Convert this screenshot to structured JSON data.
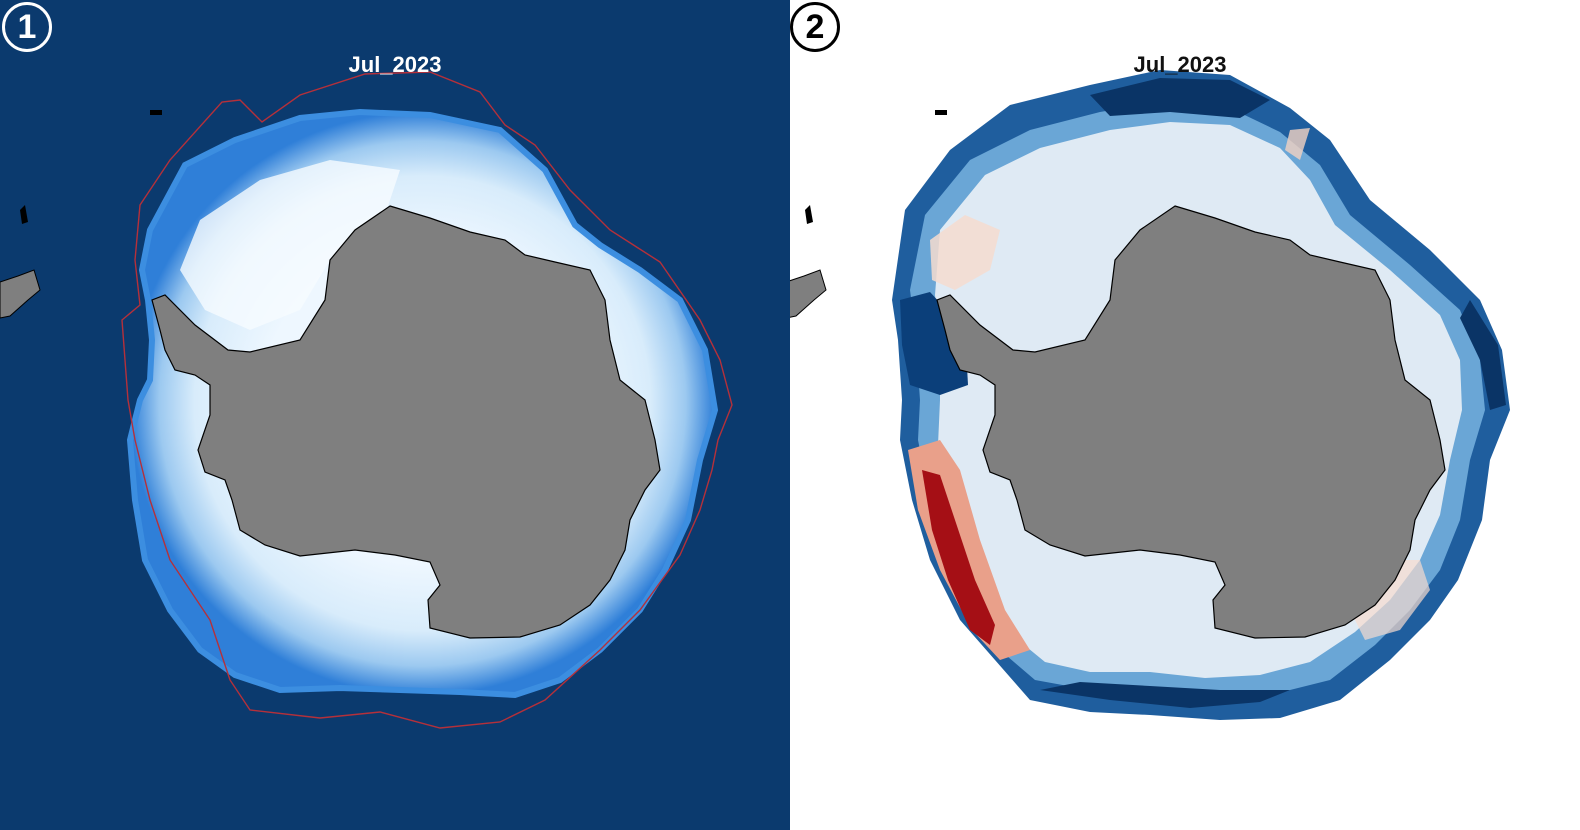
{
  "panels": [
    {
      "number": "1",
      "title": "Jul_2023",
      "colors": {
        "ocean": "#0b3a6e",
        "ice_outer": "#2f7fd8",
        "ice_mid": "#a9d3f5",
        "ice_inner": "#eef7ff",
        "land": "#7f7f7f",
        "climatology_contour": "#b5303a"
      }
    },
    {
      "number": "2",
      "title": "Jul_2023",
      "colors": {
        "background": "#ffffff",
        "anomaly_negative_strong": "#08306b",
        "anomaly_negative": "#4a90c8",
        "anomaly_near_zero": "#dce9f4",
        "anomaly_positive": "#f4c0a8",
        "anomaly_positive_strong": "#a50f15",
        "land": "#7f7f7f"
      }
    }
  ]
}
